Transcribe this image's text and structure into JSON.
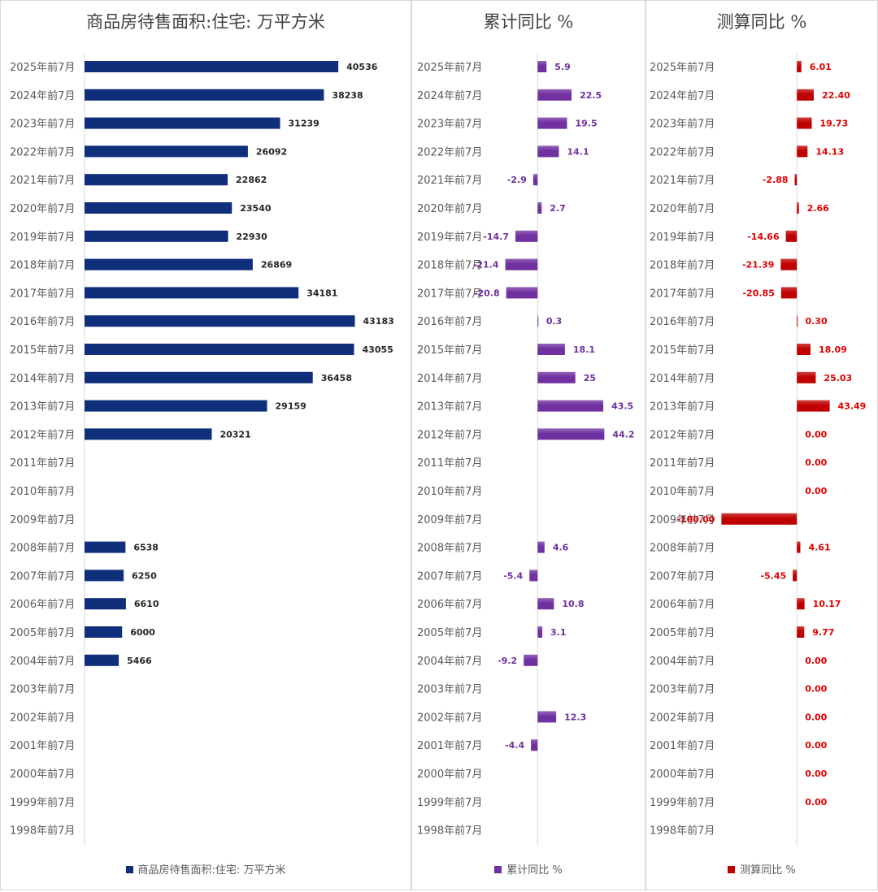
{
  "chart_data": [
    {
      "type": "bar",
      "title": "商品房待售面积:住宅: 万平方米",
      "legend": "商品房待售面积:住宅: 万平方米",
      "color": "#0f2f7a",
      "label_color": "#262626",
      "orientation": "horizontal",
      "categories": [
        "2025年前7月",
        "2024年前7月",
        "2023年前7月",
        "2022年前7月",
        "2021年前7月",
        "2020年前7月",
        "2019年前7月",
        "2018年前7月",
        "2017年前7月",
        "2016年前7月",
        "2015年前7月",
        "2014年前7月",
        "2013年前7月",
        "2012年前7月",
        "2011年前7月",
        "2010年前7月",
        "2009年前7月",
        "2008年前7月",
        "2007年前7月",
        "2006年前7月",
        "2005年前7月",
        "2004年前7月",
        "2003年前7月",
        "2002年前7月",
        "2001年前7月",
        "2000年前7月",
        "1999年前7月",
        "1998年前7月"
      ],
      "values": [
        40536,
        38238,
        31239,
        26092,
        22862,
        23540,
        22930,
        26869,
        34181,
        43183,
        43055,
        36458,
        29159,
        20321,
        null,
        null,
        null,
        6538,
        6250,
        6610,
        6000,
        5466,
        null,
        null,
        null,
        null,
        null,
        null
      ],
      "value_labels": [
        "40536",
        "38238",
        "31239",
        "26092",
        "22862",
        "23540",
        "22930",
        "26869",
        "34181",
        "43183",
        "43055",
        "36458",
        "29159",
        "20321",
        "",
        "",
        "",
        "6538",
        "6250",
        "6610",
        "6000",
        "5466",
        "",
        "",
        "",
        "",
        "",
        ""
      ],
      "xlim": [
        0,
        50000
      ],
      "legend_position": "bottom",
      "grid": false
    },
    {
      "type": "bar",
      "title": "累计同比 %",
      "legend": "累计同比 %",
      "color": "#7030a0",
      "label_color": "#7030a0",
      "orientation": "horizontal",
      "categories": [
        "2025年前7月",
        "2024年前7月",
        "2023年前7月",
        "2022年前7月",
        "2021年前7月",
        "2020年前7月",
        "2019年前7月",
        "2018年前7月",
        "2017年前7月",
        "2016年前7月",
        "2015年前7月",
        "2014年前7月",
        "2013年前7月",
        "2012年前7月",
        "2011年前7月",
        "2010年前7月",
        "2009年前7月",
        "2008年前7月",
        "2007年前7月",
        "2006年前7月",
        "2005年前7月",
        "2004年前7月",
        "2003年前7月",
        "2002年前7月",
        "2001年前7月",
        "2000年前7月",
        "1999年前7月",
        "1998年前7月"
      ],
      "values": [
        5.9,
        22.5,
        19.5,
        14.1,
        -2.9,
        2.7,
        -14.7,
        -21.4,
        -20.8,
        0.3,
        18.1,
        25,
        43.5,
        44.2,
        null,
        null,
        null,
        4.6,
        -5.4,
        10.8,
        3.1,
        -9.2,
        null,
        12.3,
        -4.4,
        null,
        null,
        null
      ],
      "value_labels": [
        "5.9",
        "22.5",
        "19.5",
        "14.1",
        "-2.9",
        "2.7",
        "-14.7",
        "-21.4",
        "-20.8",
        "0.3",
        "18.1",
        "25",
        "43.5",
        "44.2",
        "",
        "",
        "",
        "4.6",
        "-5.4",
        "10.8",
        "3.1",
        "-9.2",
        "",
        "12.3",
        "-4.4",
        "",
        "",
        ""
      ],
      "xlim": [
        -26,
        58
      ],
      "legend_position": "bottom",
      "grid": false
    },
    {
      "type": "bar",
      "title": "测算同比 %",
      "legend": "测算同比 %",
      "color": "#c00000",
      "label_color": "#e00000",
      "orientation": "horizontal",
      "categories": [
        "2025年前7月",
        "2024年前7月",
        "2023年前7月",
        "2022年前7月",
        "2021年前7月",
        "2020年前7月",
        "2019年前7月",
        "2018年前7月",
        "2017年前7月",
        "2016年前7月",
        "2015年前7月",
        "2014年前7月",
        "2013年前7月",
        "2012年前7月",
        "2011年前7月",
        "2010年前7月",
        "2009年前7月",
        "2008年前7月",
        "2007年前7月",
        "2006年前7月",
        "2005年前7月",
        "2004年前7月",
        "2003年前7月",
        "2002年前7月",
        "2001年前7月",
        "2000年前7月",
        "1999年前7月",
        "1998年前7月"
      ],
      "values": [
        6.01,
        22.4,
        19.73,
        14.13,
        -2.88,
        2.66,
        -14.66,
        -21.39,
        -20.85,
        0.3,
        18.09,
        25.03,
        43.49,
        0,
        0,
        0,
        -100,
        4.61,
        -5.45,
        10.17,
        9.77,
        0,
        0,
        0,
        0,
        0,
        0,
        null
      ],
      "value_labels": [
        "6.01",
        "22.40",
        "19.73",
        "14.13",
        "-2.88",
        "2.66",
        "-14.66",
        "-21.39",
        "-20.85",
        "0.30",
        "18.09",
        "25.03",
        "43.49",
        "0.00",
        "0.00",
        "0.00",
        "-100.00",
        "4.61",
        "-5.45",
        "10.17",
        "9.77",
        "0.00",
        "0.00",
        "0.00",
        "0.00",
        "0.00",
        "0.00",
        ""
      ],
      "xlim": [
        -150,
        100
      ],
      "legend_position": "bottom",
      "grid": false
    }
  ]
}
